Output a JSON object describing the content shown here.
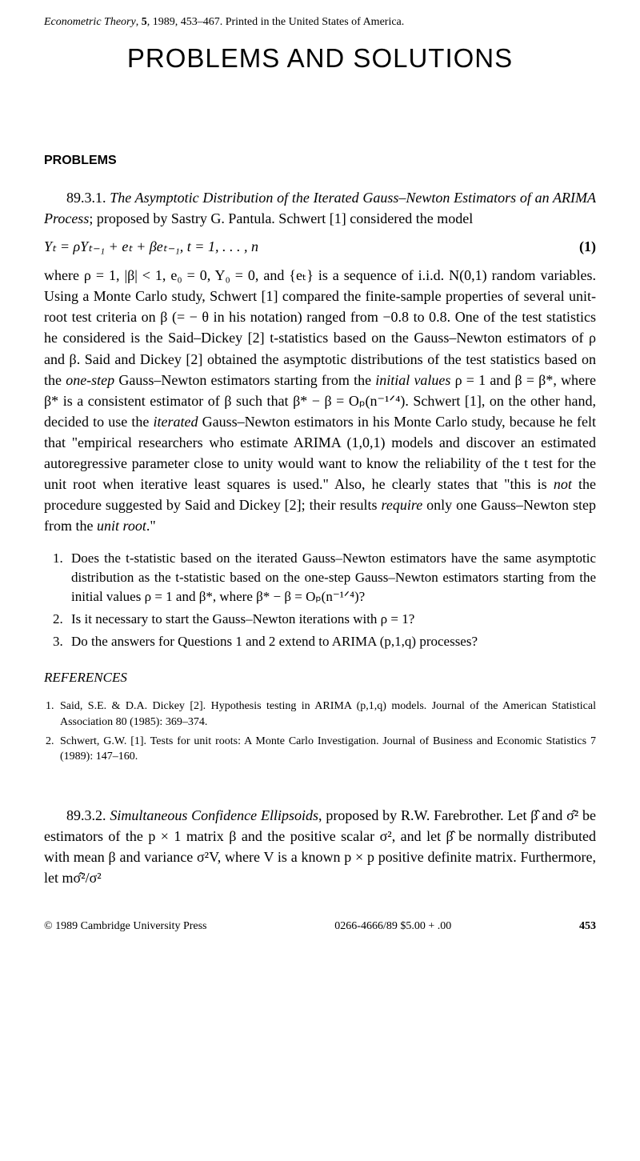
{
  "header": {
    "journal": "Econometric Theory",
    "volume": "5",
    "year": "1989",
    "pages": "453–467",
    "printed": "Printed in the United States of America."
  },
  "mainTitle": "PROBLEMS AND SOLUTIONS",
  "sectionHeading": "PROBLEMS",
  "problem1": {
    "number": "89.3.1.",
    "title": "The Asymptotic Distribution of the Iterated Gauss–Newton Estimators of an ARIMA Process",
    "proposer": "; proposed by Sastry G. Pantula. Schwert [1] considered the model",
    "equation": "Yₜ = ρYₜ₋₁ + eₜ + βeₜ₋₁,      t = 1, . . . , n",
    "equationNum": "(1)",
    "bodyPart1": "where ρ = 1, |β| < 1, e₀ = 0, Y₀ = 0, and {eₜ} is a sequence of i.i.d. N(0,1) random variables. Using a Monte Carlo study, Schwert [1] compared the finite-sample properties of several unit-root test criteria on β (= − θ in his notation) ranged from −0.8 to 0.8. One of the test statistics he considered is the Said–Dickey [2] t-statistics based on the Gauss–Newton estimators of ρ and β. Said and Dickey [2] obtained the asymptotic distributions of the test statistics based on the ",
    "bodyItalic1": "one-step",
    "bodyPart2": " Gauss–Newton estimators starting from the ",
    "bodyItalic2": "initial values",
    "bodyPart3": " ρ = 1 and β = β*, where β* is a consistent estimator of β such that β* − β = Oₚ(n⁻¹ᐟ⁴). Schwert [1], on the other hand, decided to use the ",
    "bodyItalic3": "iterated",
    "bodyPart4": " Gauss–Newton estimators in his Monte Carlo study, because he felt that \"empirical researchers who estimate ARIMA (1,0,1) models and discover an estimated autoregressive parameter close to unity would want to know the reliability of the t test for the unit root when iterative least squares is used.\" Also, he clearly states that \"this is ",
    "bodyItalic4": "not",
    "bodyPart5": " the procedure suggested by Said and Dickey [2]; their results ",
    "bodyItalic5": "require",
    "bodyPart6": " only one Gauss–Newton step from the ",
    "bodyItalic6": "unit root",
    "bodyPart7": ".\"",
    "questions": [
      "Does the t-statistic based on the iterated Gauss–Newton estimators have the same asymptotic distribution as the t-statistic based on the one-step Gauss–Newton estimators starting from the initial values ρ = 1 and β*, where β* − β = Oₚ(n⁻¹ᐟ⁴)?",
      "Is it necessary to start the Gauss–Newton iterations with ρ = 1?",
      "Do the answers for Questions 1 and 2 extend to ARIMA (p,1,q) processes?"
    ]
  },
  "referencesHeading": "REFERENCES",
  "references": [
    "Said, S.E. & D.A. Dickey [2]. Hypothesis testing in ARIMA (p,1,q) models. Journal of the American Statistical Association 80 (1985): 369–374.",
    "Schwert, G.W. [1]. Tests for unit roots: A Monte Carlo Investigation. Journal of Business and Economic Statistics 7 (1989): 147–160."
  ],
  "problem2": {
    "number": "89.3.2.",
    "title": "Simultaneous Confidence Ellipsoids",
    "body": ", proposed by R.W. Farebrother. Let β̂ and σ̂² be estimators of the p × 1 matrix β and the positive scalar σ², and let β̂ be normally distributed with mean β and variance σ²V, where V is a known p × p positive definite matrix. Furthermore, let mσ̂²/σ²"
  },
  "footer": {
    "copyright": "© 1989 Cambridge University Press",
    "issn": "0266-4666/89 $5.00 + .00",
    "pageNum": "453"
  }
}
